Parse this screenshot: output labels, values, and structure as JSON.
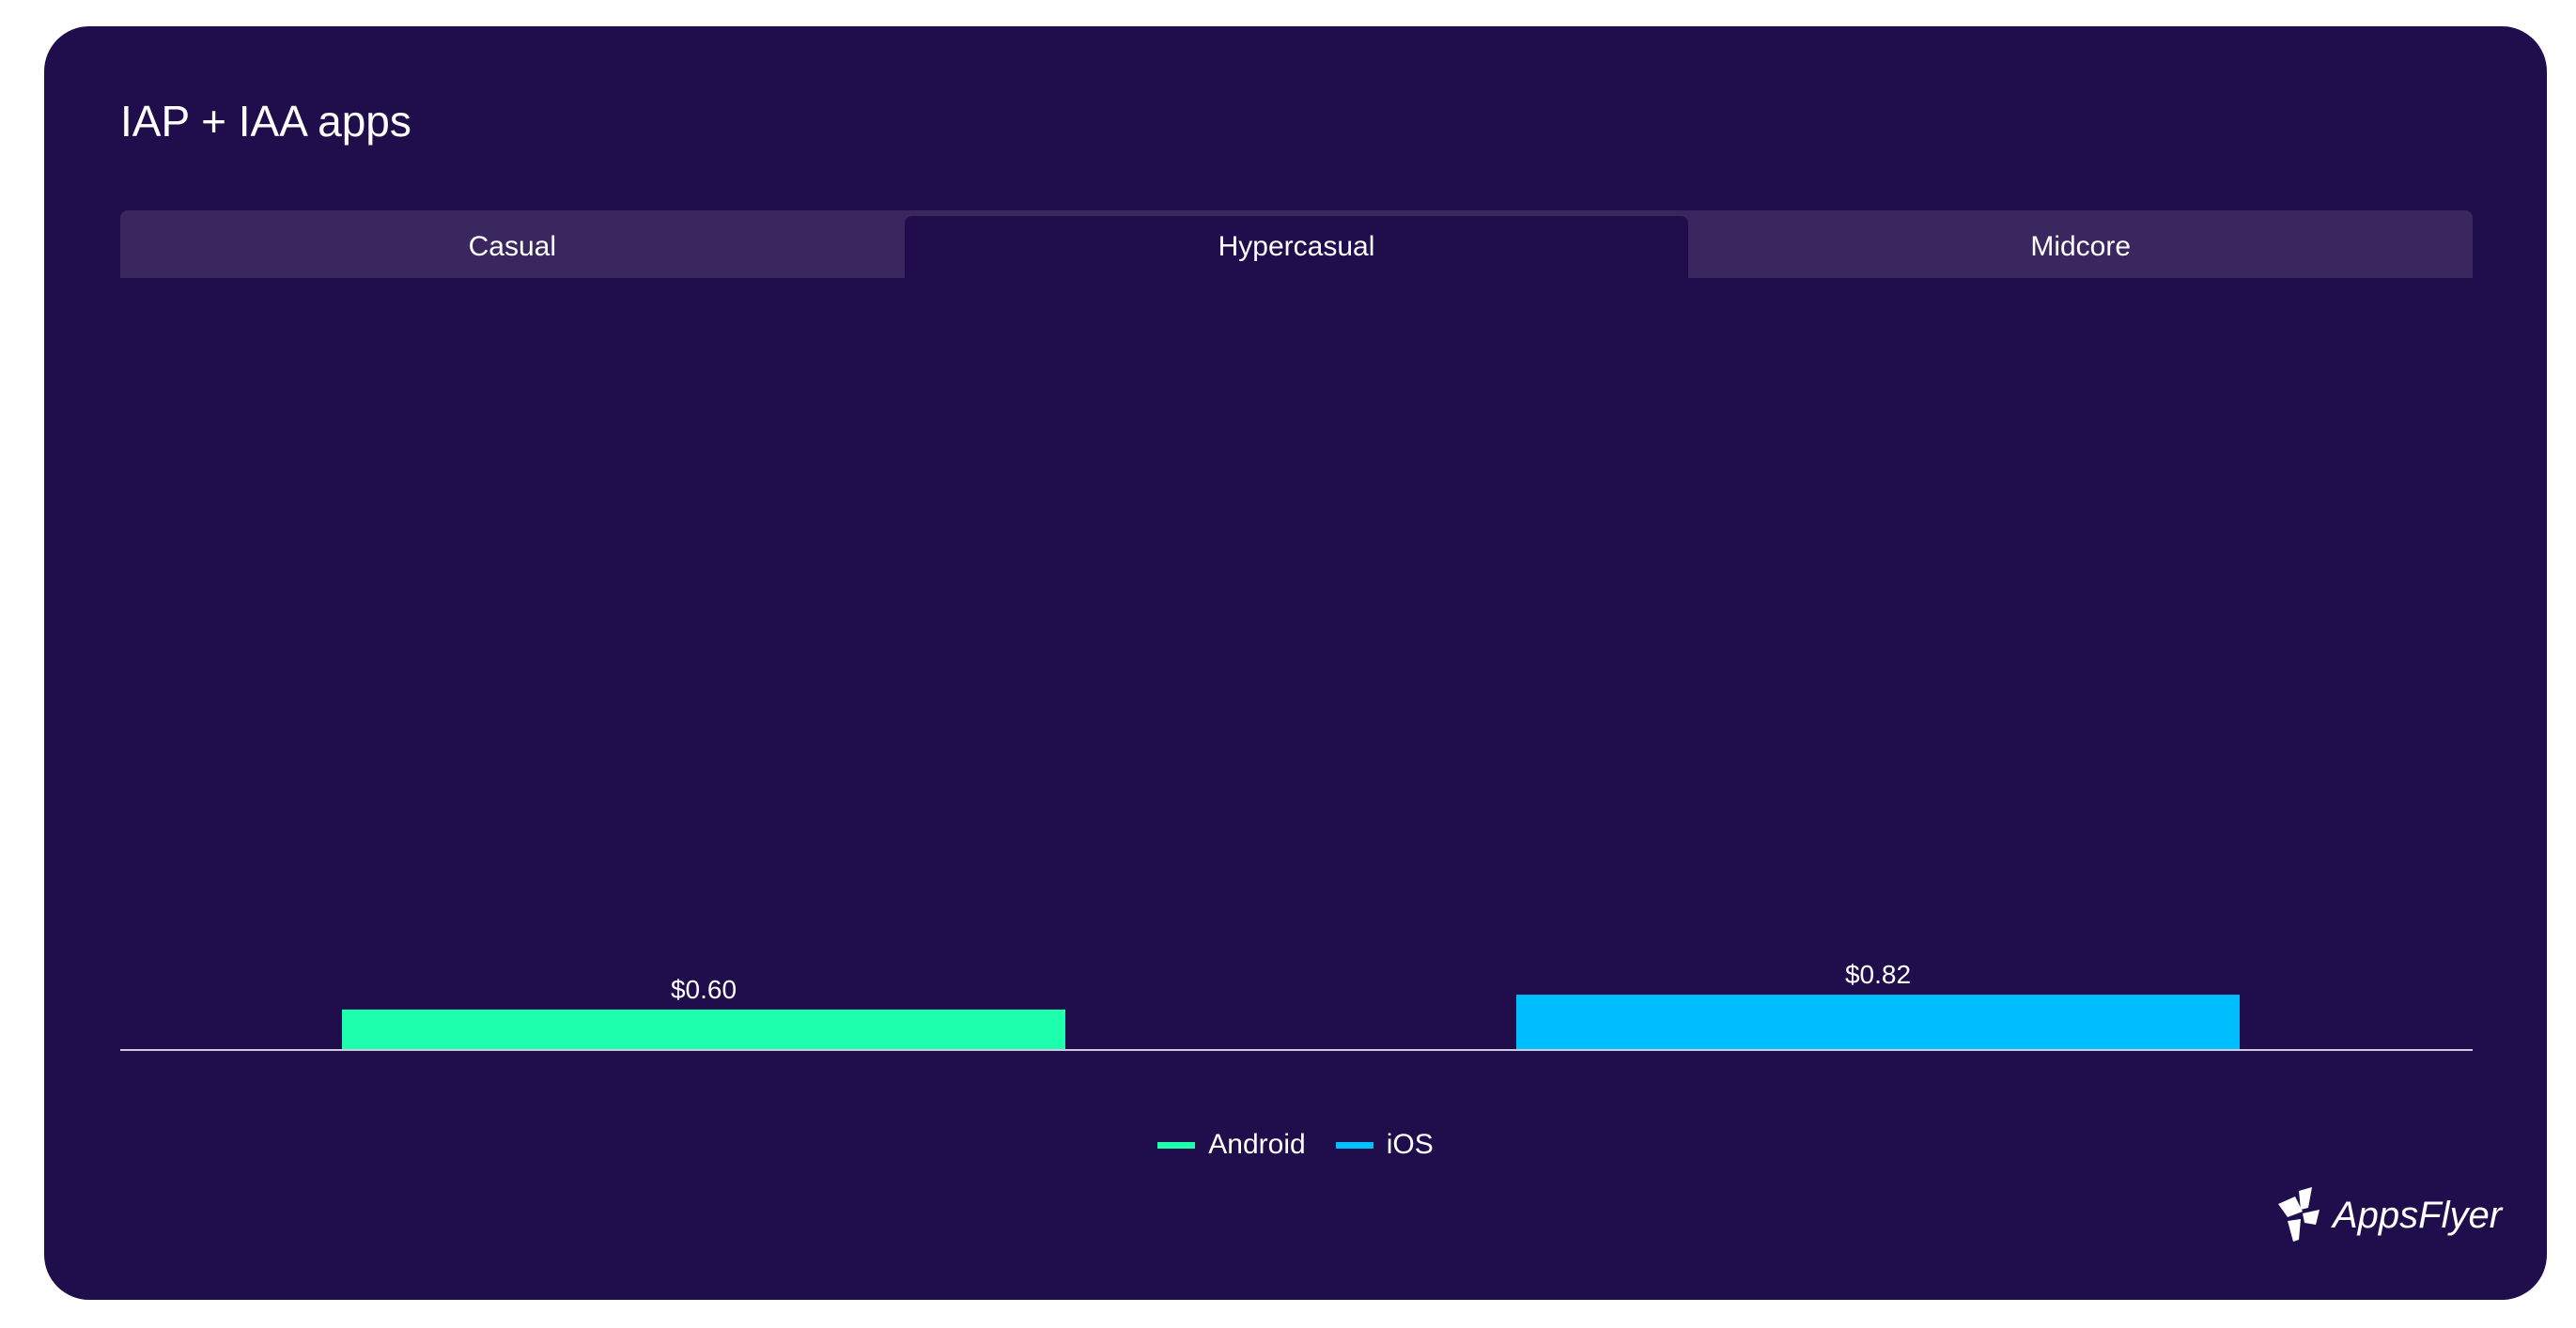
{
  "title": "IAP + IAA apps",
  "tabs": [
    {
      "label": "Casual",
      "active": false
    },
    {
      "label": "Hypercasual",
      "active": true
    },
    {
      "label": "Midcore",
      "active": false
    }
  ],
  "chart_data": {
    "type": "bar",
    "title": "IAP + IAA apps",
    "categories": [
      "Android",
      "iOS"
    ],
    "values": [
      0.6,
      0.82
    ],
    "value_labels": [
      "$0.60",
      "$0.82"
    ],
    "colors": [
      "#1effae",
      "#00bfff"
    ],
    "ylim": [
      0,
      11
    ],
    "grid": false,
    "legend_position": "bottom-center"
  },
  "legend": [
    {
      "label": "Android",
      "color": "#1effae"
    },
    {
      "label": "iOS",
      "color": "#00bfff"
    }
  ],
  "logo": {
    "text": "AppsFlyer"
  },
  "colors": {
    "background": "#200d4b",
    "tab_bar": "#3a275f",
    "axis": "#cfc8e0",
    "text": "#ffffff"
  }
}
